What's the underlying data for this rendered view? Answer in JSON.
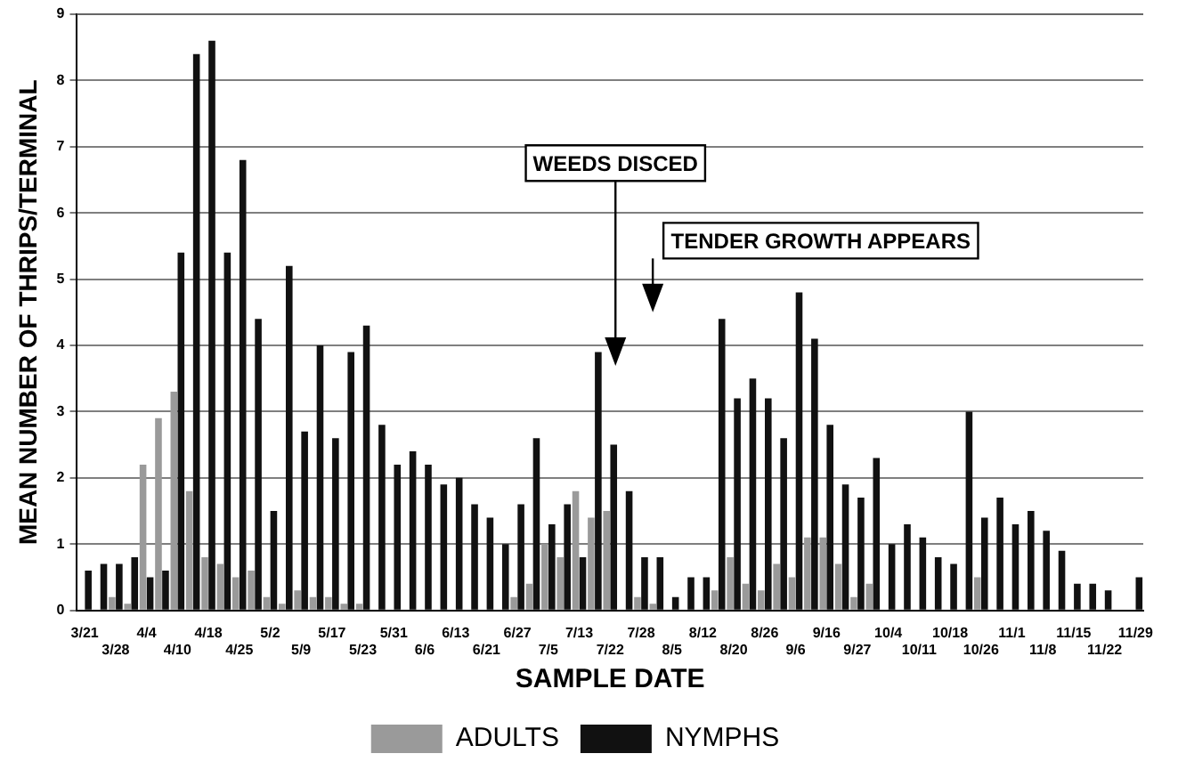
{
  "chart_data": {
    "type": "bar",
    "xlabel": "SAMPLE DATE",
    "ylabel": "MEAN NUMBER OF THRIPS/TERMINAL",
    "categories": [
      "3/21",
      null,
      "3/28",
      null,
      "4/4",
      null,
      "4/10",
      null,
      "4/18",
      null,
      "4/25",
      null,
      "5/2",
      null,
      "5/9",
      null,
      "5/17",
      null,
      "5/23",
      null,
      "5/31",
      null,
      "6/6",
      null,
      "6/13",
      null,
      "6/21",
      null,
      "6/27",
      null,
      "7/5",
      null,
      "7/13",
      null,
      "7/22",
      null,
      "7/28",
      null,
      "8/5",
      null,
      "8/12",
      null,
      "8/20",
      null,
      "8/26",
      null,
      "9/6",
      null,
      "9/16",
      null,
      "9/27",
      null,
      "10/4",
      null,
      "10/11",
      null,
      "10/18",
      null,
      "10/26",
      null,
      "11/1",
      null,
      "11/8",
      null,
      "11/15",
      null,
      "11/22",
      null,
      "11/29"
    ],
    "series": [
      {
        "name": "ADULTS",
        "color": "#9a9a9a",
        "values": [
          0,
          0,
          0.2,
          0.1,
          2.2,
          2.9,
          3.3,
          1.8,
          0.8,
          0.7,
          0.5,
          0.6,
          0.2,
          0.1,
          0.3,
          0.2,
          0.2,
          0.1,
          0.1,
          0,
          0,
          0,
          0,
          0,
          0,
          0,
          0,
          0,
          0.2,
          0.4,
          1.0,
          0.8,
          1.8,
          1.4,
          1.5,
          0,
          0.2,
          0.1,
          0,
          0,
          0,
          0.3,
          0.8,
          0.4,
          0.3,
          0.7,
          0.5,
          1.1,
          1.1,
          0.7,
          0.2,
          0.4,
          0,
          0,
          0,
          0,
          0,
          0,
          0.5,
          0,
          0,
          0,
          0,
          0,
          0,
          0,
          0,
          null,
          0
        ]
      },
      {
        "name": "NYMPHS",
        "color": "#111111",
        "values": [
          0.6,
          0.7,
          0.7,
          0.8,
          0.5,
          0.6,
          5.4,
          8.4,
          8.6,
          5.4,
          6.8,
          4.4,
          1.5,
          5.2,
          2.7,
          4.0,
          2.6,
          3.9,
          4.3,
          2.8,
          2.2,
          2.4,
          2.2,
          1.9,
          2.0,
          1.6,
          1.4,
          1.0,
          1.6,
          2.6,
          1.3,
          1.6,
          0.8,
          3.9,
          2.5,
          1.8,
          0.8,
          0.8,
          0.2,
          0.5,
          0.5,
          4.4,
          3.2,
          3.5,
          3.2,
          2.6,
          4.8,
          4.1,
          2.8,
          1.9,
          1.7,
          2.3,
          1.0,
          1.3,
          1.1,
          0.8,
          0.7,
          3.0,
          1.4,
          1.7,
          1.3,
          1.5,
          1.2,
          0.9,
          0.4,
          0.4,
          0.3,
          null,
          0.5
        ]
      }
    ],
    "ylim": [
      0,
      9
    ],
    "yticks": [
      0,
      1,
      2,
      3,
      4,
      5,
      6,
      7,
      8,
      9
    ],
    "grid": "y",
    "legend": "bottom",
    "annotations": [
      "WEEDS DISCED",
      "TENDER GROWTH APPEARS"
    ]
  }
}
